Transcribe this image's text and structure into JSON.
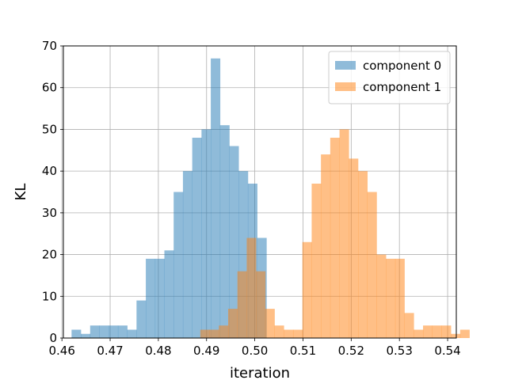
{
  "chart_data": {
    "type": "bar",
    "subtype": "overlapping-histogram",
    "xlabel": "iteration",
    "ylabel": "KL",
    "xlim": [
      0.4603,
      0.5418
    ],
    "ylim": [
      0,
      70
    ],
    "xticks": [
      0.46,
      0.47,
      0.48,
      0.49,
      0.5,
      0.51,
      0.52,
      0.53,
      0.54
    ],
    "xtick_labels": [
      "0.46",
      "0.47",
      "0.48",
      "0.49",
      "0.50",
      "0.51",
      "0.52",
      "0.53",
      "0.54"
    ],
    "yticks": [
      0,
      10,
      20,
      30,
      40,
      50,
      60,
      70
    ],
    "ytick_labels": [
      "0",
      "10",
      "20",
      "30",
      "40",
      "50",
      "60",
      "70"
    ],
    "grid": true,
    "legend_position": "top-right",
    "series": [
      {
        "name": "component 0",
        "color": "#1f77b4",
        "opacity": 0.5,
        "bin_start": 0.462,
        "bin_width": 0.001925,
        "counts": [
          2,
          1,
          3,
          3,
          3,
          3,
          2,
          9,
          19,
          19,
          21,
          35,
          40,
          48,
          50,
          67,
          51,
          46,
          40,
          37,
          24
        ]
      },
      {
        "name": "component 1",
        "color": "#ff7f0e",
        "opacity": 0.5,
        "bin_start": 0.4887,
        "bin_width": 0.001925,
        "counts": [
          2,
          2,
          3,
          7,
          16,
          24,
          16,
          7,
          3,
          2,
          2,
          23,
          37,
          44,
          48,
          50,
          43,
          40,
          35,
          20,
          19,
          19,
          6,
          2,
          3,
          3,
          3,
          1,
          2
        ]
      }
    ]
  }
}
